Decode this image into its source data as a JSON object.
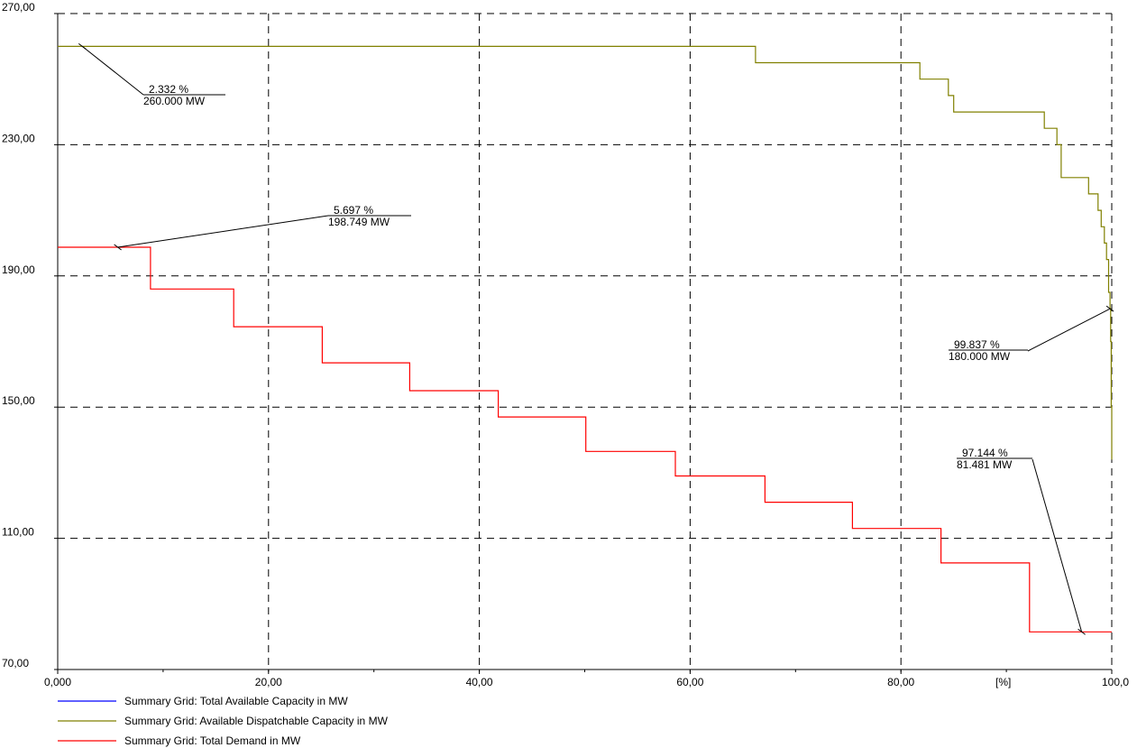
{
  "chart_data": {
    "type": "line",
    "xlim": [
      0,
      100
    ],
    "ylim": [
      70,
      270
    ],
    "grid": true,
    "legend_position": "bottom-left",
    "x_unit_label": "[%]",
    "x_ticks": [
      {
        "value": 0,
        "label": "0,000"
      },
      {
        "value": 20,
        "label": "20,00"
      },
      {
        "value": 40,
        "label": "40,00"
      },
      {
        "value": 60,
        "label": "60,00"
      },
      {
        "value": 80,
        "label": "80,00"
      },
      {
        "value": 100,
        "label": "100,0"
      }
    ],
    "y_ticks": [
      {
        "value": 70,
        "label": "70,00"
      },
      {
        "value": 110,
        "label": "110,00"
      },
      {
        "value": 150,
        "label": "150,00"
      },
      {
        "value": 190,
        "label": "190,00"
      },
      {
        "value": 230,
        "label": "230,00"
      },
      {
        "value": 270,
        "label": "270,00"
      }
    ],
    "series": [
      {
        "name": "Summary Grid: Total Available Capacity in MW",
        "color": "#0000ff",
        "points": []
      },
      {
        "name": "Summary Grid: Available Dispatchable Capacity in MW",
        "color": "#808000",
        "points": [
          [
            0,
            260
          ],
          [
            66.2,
            260
          ],
          [
            66.2,
            255
          ],
          [
            81.8,
            255
          ],
          [
            81.8,
            250
          ],
          [
            84.5,
            250
          ],
          [
            84.5,
            245
          ],
          [
            85.0,
            245
          ],
          [
            85.0,
            240
          ],
          [
            93.6,
            240
          ],
          [
            93.6,
            235
          ],
          [
            94.8,
            235
          ],
          [
            94.8,
            230
          ],
          [
            95.2,
            230
          ],
          [
            95.2,
            220
          ],
          [
            97.8,
            220
          ],
          [
            97.8,
            215
          ],
          [
            98.7,
            215
          ],
          [
            98.7,
            210
          ],
          [
            99.0,
            210
          ],
          [
            99.0,
            205
          ],
          [
            99.3,
            205
          ],
          [
            99.3,
            200
          ],
          [
            99.5,
            200
          ],
          [
            99.5,
            195
          ],
          [
            99.7,
            195
          ],
          [
            99.7,
            185
          ],
          [
            99.837,
            185
          ],
          [
            99.837,
            180
          ],
          [
            99.9,
            180
          ],
          [
            99.9,
            170
          ],
          [
            99.95,
            170
          ],
          [
            99.95,
            150
          ],
          [
            100,
            150
          ],
          [
            100,
            134
          ]
        ]
      },
      {
        "name": "Summary Grid: Total Demand in MW",
        "color": "#ff0000",
        "points": [
          [
            0,
            198.749
          ],
          [
            8.8,
            198.749
          ],
          [
            8.8,
            186
          ],
          [
            16.7,
            186
          ],
          [
            16.7,
            174.5
          ],
          [
            25.1,
            174.5
          ],
          [
            25.1,
            163.5
          ],
          [
            33.4,
            163.5
          ],
          [
            33.4,
            155
          ],
          [
            41.8,
            155
          ],
          [
            41.8,
            147
          ],
          [
            50.1,
            147
          ],
          [
            50.1,
            136.5
          ],
          [
            58.6,
            136.5
          ],
          [
            58.6,
            129
          ],
          [
            67.1,
            129
          ],
          [
            67.1,
            121
          ],
          [
            75.4,
            121
          ],
          [
            75.4,
            113
          ],
          [
            83.8,
            113
          ],
          [
            83.8,
            102.5
          ],
          [
            92.2,
            102.5
          ],
          [
            92.2,
            81.481
          ],
          [
            100,
            81.481
          ]
        ]
      }
    ],
    "annotations": [
      {
        "pct": "2.332 %",
        "mw": "260.000 MW",
        "point": [
          2.332,
          260
        ]
      },
      {
        "pct": "5.697 %",
        "mw": "198.749 MW",
        "point": [
          5.697,
          198.749
        ]
      },
      {
        "pct": "99.837 %",
        "mw": "180.000 MW",
        "point": [
          99.837,
          180
        ]
      },
      {
        "pct": "97.144 %",
        "mw": "81.481 MW",
        "point": [
          97.144,
          81.481
        ]
      }
    ]
  }
}
